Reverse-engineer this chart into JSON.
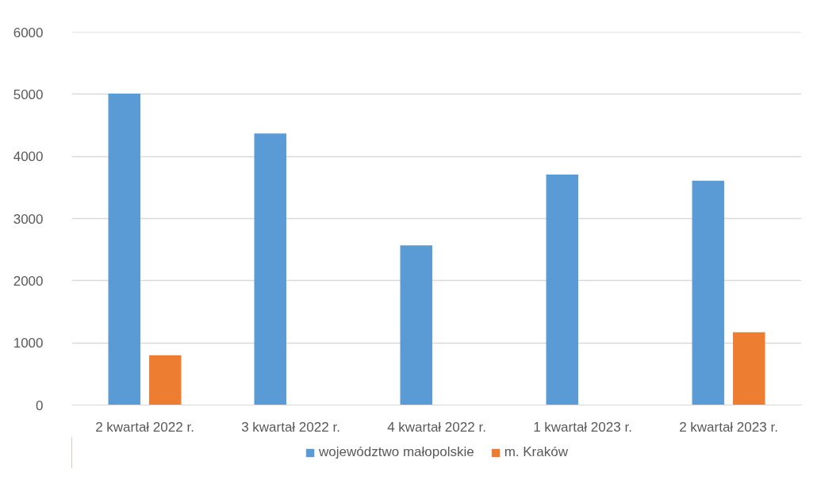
{
  "chart_data": {
    "type": "bar",
    "categories": [
      "2 kwartał 2022 r.",
      "3 kwartał 2022 r.",
      "4 kwartał 2022 r.",
      "1 kwartał 2023 r.",
      "2 kwartał 2023 r."
    ],
    "series": [
      {
        "name": "województwo małopolskie",
        "color": "#5b9bd5",
        "values": [
          5010,
          4370,
          2570,
          3710,
          3610
        ]
      },
      {
        "name": "m. Kraków",
        "color": "#ed7d31",
        "values": [
          800,
          null,
          null,
          null,
          1170
        ]
      }
    ],
    "ylim": [
      0,
      6000
    ],
    "yticks": [
      0,
      1000,
      2000,
      3000,
      4000,
      5000,
      6000
    ],
    "grid": "y",
    "legend": "bottom"
  }
}
